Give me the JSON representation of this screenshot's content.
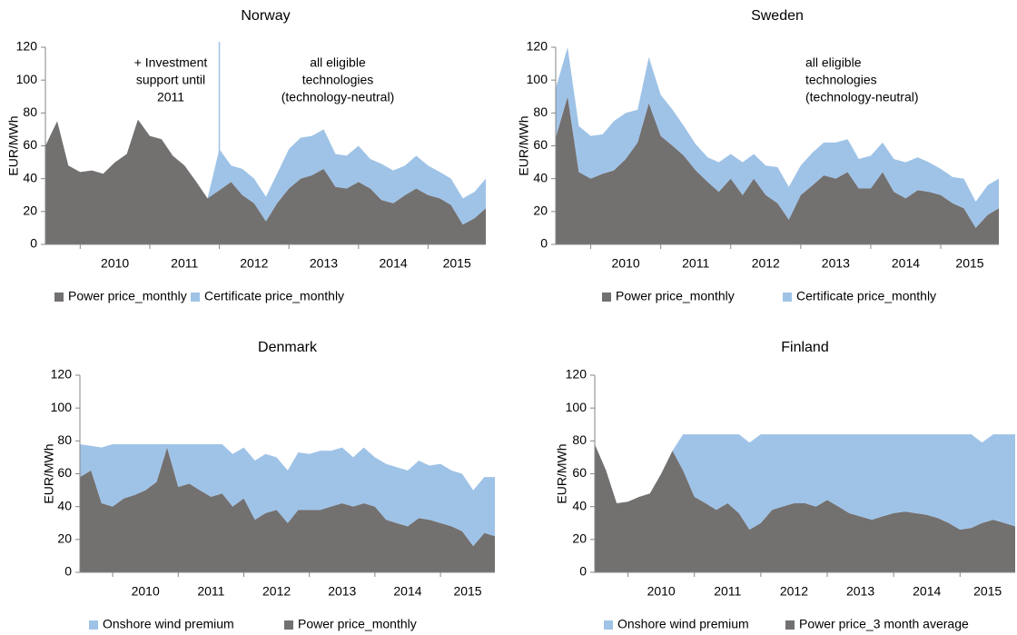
{
  "chart_data": [
    {
      "type": "area",
      "title": "Norway",
      "y_label": "EUR/MWh",
      "categories": [
        "2010",
        "2011",
        "2012",
        "2013",
        "2014",
        "2015"
      ],
      "x": [
        2009.5,
        2009.67,
        2009.83,
        2010,
        2010.17,
        2010.33,
        2010.5,
        2010.67,
        2010.83,
        2011,
        2011.17,
        2011.33,
        2011.5,
        2011.67,
        2011.83,
        2012,
        2012.17,
        2012.33,
        2012.5,
        2012.67,
        2012.83,
        2013,
        2013.17,
        2013.33,
        2013.5,
        2013.67,
        2013.83,
        2014,
        2014.17,
        2014.33,
        2014.5,
        2014.67,
        2014.83,
        2015,
        2015.17,
        2015.33,
        2015.5,
        2015.67,
        2015.83
      ],
      "xlim": [
        2009.5,
        2015.83
      ],
      "ylim": [
        0,
        120
      ],
      "yticks": [
        0,
        20,
        40,
        60,
        80,
        100,
        120
      ],
      "stacked": true,
      "series": [
        {
          "name": "Power price_monthly",
          "color": "#737070",
          "values": [
            60,
            75,
            48,
            44,
            45,
            43,
            50,
            55,
            76,
            66,
            64,
            54,
            48,
            38,
            28,
            33,
            38,
            30,
            25,
            14,
            25,
            34,
            40,
            42,
            46,
            35,
            34,
            38,
            34,
            27,
            25,
            30,
            34,
            30,
            28,
            24,
            12,
            16,
            22
          ]
        },
        {
          "name": "Certificate price_monthly",
          "color": "#9fc3e7",
          "values": [
            0,
            0,
            0,
            0,
            0,
            0,
            0,
            0,
            0,
            0,
            0,
            0,
            0,
            0,
            0,
            25,
            10,
            16,
            15,
            15,
            18,
            24,
            25,
            24,
            24,
            20,
            20,
            22,
            18,
            22,
            20,
            18,
            20,
            18,
            16,
            16,
            16,
            16,
            18
          ]
        }
      ],
      "annotations": [
        {
          "lines": [
            "+ Investment",
            "support until",
            "2011"
          ]
        },
        {
          "lines": [
            "all eligible",
            "technologies",
            "(technology-neutral)"
          ]
        }
      ]
    },
    {
      "type": "area",
      "title": "Sweden",
      "y_label": "EUR/MWh",
      "categories": [
        "2010",
        "2011",
        "2012",
        "2013",
        "2014",
        "2015"
      ],
      "x": [
        2009.5,
        2009.67,
        2009.83,
        2010,
        2010.17,
        2010.33,
        2010.5,
        2010.67,
        2010.83,
        2011,
        2011.17,
        2011.33,
        2011.5,
        2011.67,
        2011.83,
        2012,
        2012.17,
        2012.33,
        2012.5,
        2012.67,
        2012.83,
        2013,
        2013.17,
        2013.33,
        2013.5,
        2013.67,
        2013.83,
        2014,
        2014.17,
        2014.33,
        2014.5,
        2014.67,
        2014.83,
        2015,
        2015.17,
        2015.33,
        2015.5,
        2015.67,
        2015.83
      ],
      "xlim": [
        2009.5,
        2015.83
      ],
      "ylim": [
        0,
        120
      ],
      "yticks": [
        0,
        20,
        40,
        60,
        80,
        100,
        120
      ],
      "stacked": true,
      "series": [
        {
          "name": "Power price_monthly",
          "color": "#737070",
          "values": [
            65,
            90,
            44,
            40,
            43,
            45,
            52,
            62,
            86,
            66,
            60,
            54,
            45,
            38,
            32,
            40,
            30,
            40,
            30,
            25,
            15,
            30,
            36,
            42,
            40,
            44,
            34,
            34,
            44,
            32,
            28,
            33,
            32,
            30,
            25,
            22,
            10,
            18,
            22
          ]
        },
        {
          "name": "Certificate price_monthly",
          "color": "#9fc3e7",
          "values": [
            30,
            30,
            28,
            26,
            24,
            30,
            28,
            20,
            28,
            25,
            22,
            18,
            16,
            15,
            18,
            15,
            20,
            15,
            18,
            22,
            20,
            18,
            20,
            20,
            22,
            20,
            18,
            20,
            18,
            20,
            22,
            20,
            18,
            16,
            16,
            18,
            16,
            18,
            18
          ]
        }
      ],
      "annotations": [
        {
          "lines": [
            "all eligible",
            "technologies",
            "(technology-neutral)"
          ]
        }
      ]
    },
    {
      "type": "area",
      "title": "Denmark",
      "y_label": "EUR/MWh",
      "categories": [
        "2010",
        "2011",
        "2012",
        "2013",
        "2014",
        "2015"
      ],
      "x": [
        2009.5,
        2009.67,
        2009.83,
        2010,
        2010.17,
        2010.33,
        2010.5,
        2010.67,
        2010.83,
        2011,
        2011.17,
        2011.33,
        2011.5,
        2011.67,
        2011.83,
        2012,
        2012.17,
        2012.33,
        2012.5,
        2012.67,
        2012.83,
        2013,
        2013.17,
        2013.33,
        2013.5,
        2013.67,
        2013.83,
        2014,
        2014.17,
        2014.33,
        2014.5,
        2014.67,
        2014.83,
        2015,
        2015.17,
        2015.33,
        2015.5,
        2015.67,
        2015.83
      ],
      "xlim": [
        2009.5,
        2015.83
      ],
      "ylim": [
        0,
        120
      ],
      "yticks": [
        0,
        20,
        40,
        60,
        80,
        100,
        120
      ],
      "stacked": true,
      "legend_reverse": true,
      "series": [
        {
          "name": "Power price_monthly",
          "color": "#737070",
          "values": [
            58,
            62,
            42,
            40,
            45,
            47,
            50,
            55,
            76,
            52,
            54,
            50,
            46,
            48,
            40,
            45,
            32,
            36,
            38,
            30,
            38,
            38,
            38,
            40,
            42,
            40,
            42,
            40,
            32,
            30,
            28,
            33,
            32,
            30,
            28,
            25,
            16,
            24,
            22
          ]
        },
        {
          "name": "Onshore wind premium",
          "color": "#9fc3e7",
          "values": [
            20,
            15,
            34,
            38,
            33,
            31,
            28,
            23,
            2,
            26,
            24,
            28,
            32,
            30,
            32,
            31,
            36,
            36,
            32,
            32,
            35,
            34,
            36,
            34,
            34,
            30,
            34,
            30,
            34,
            34,
            34,
            35,
            33,
            36,
            34,
            35,
            34,
            34,
            36
          ]
        }
      ]
    },
    {
      "type": "area",
      "title": "Finland",
      "y_label": "EUR/MWh",
      "categories": [
        "2010",
        "2011",
        "2012",
        "2013",
        "2014",
        "2015"
      ],
      "x": [
        2009.5,
        2009.67,
        2009.83,
        2010,
        2010.17,
        2010.33,
        2010.5,
        2010.67,
        2010.83,
        2011,
        2011.17,
        2011.33,
        2011.5,
        2011.67,
        2011.83,
        2012,
        2012.17,
        2012.33,
        2012.5,
        2012.67,
        2012.83,
        2013,
        2013.17,
        2013.33,
        2013.5,
        2013.67,
        2013.83,
        2014,
        2014.17,
        2014.33,
        2014.5,
        2014.67,
        2014.83,
        2015,
        2015.17,
        2015.33,
        2015.5,
        2015.67,
        2015.83
      ],
      "xlim": [
        2009.5,
        2015.83
      ],
      "ylim": [
        0,
        120
      ],
      "yticks": [
        0,
        20,
        40,
        60,
        80,
        100,
        120
      ],
      "stacked": true,
      "legend_reverse": true,
      "series": [
        {
          "name": "Power price_3 month average",
          "color": "#737070",
          "values": [
            78,
            62,
            42,
            43,
            46,
            48,
            60,
            74,
            62,
            46,
            42,
            38,
            42,
            36,
            26,
            30,
            38,
            40,
            42,
            42,
            40,
            44,
            40,
            36,
            34,
            32,
            34,
            36,
            37,
            36,
            35,
            33,
            30,
            26,
            27,
            30,
            32,
            30,
            28
          ]
        },
        {
          "name": "Onshore wind premium",
          "color": "#9fc3e7",
          "values": [
            0,
            0,
            0,
            0,
            0,
            0,
            0,
            0,
            22,
            38,
            42,
            46,
            42,
            48,
            53,
            54,
            46,
            44,
            42,
            42,
            44,
            40,
            44,
            48,
            50,
            52,
            50,
            48,
            47,
            48,
            49,
            51,
            54,
            58,
            57,
            49,
            52,
            54,
            56
          ]
        }
      ]
    }
  ]
}
